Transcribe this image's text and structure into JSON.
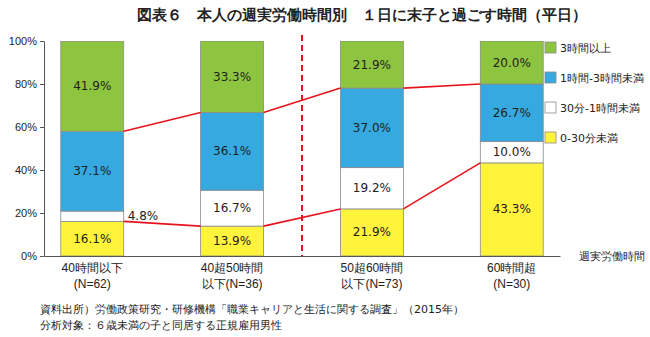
{
  "chart_data": {
    "type": "bar",
    "stacked": true,
    "title": "図表６　本人の週実労働時間別　１日に末子と過ごす時間（平日）",
    "x_label": "週実労働時間",
    "categories": [
      "40時間以下\n(N=62)",
      "40超50時間\n以下(N=36)",
      "50超60時間\n以下(N=73)",
      "60時間超\n(N=30)"
    ],
    "series": [
      {
        "name": "0-30分未満",
        "color": "#fff33b",
        "values": [
          16.1,
          13.9,
          21.9,
          43.3
        ],
        "value_labels": [
          "16.1%",
          "13.9%",
          "21.9%",
          "43.3%"
        ]
      },
      {
        "name": "30分-1時間未満",
        "color": "#ffffff",
        "values": [
          4.8,
          16.7,
          19.2,
          10.0
        ],
        "value_labels": [
          "4.8%",
          "16.7%",
          "19.2%",
          "10.0%"
        ]
      },
      {
        "name": "1時間-3時間未満",
        "color": "#35a9e0",
        "values": [
          37.1,
          36.1,
          37.0,
          26.7
        ],
        "value_labels": [
          "37.1%",
          "36.1%",
          "37.0%",
          "26.7%"
        ]
      },
      {
        "name": "3時間以上",
        "color": "#8dc540",
        "values": [
          41.9,
          33.3,
          21.9,
          20.0
        ],
        "value_labels": [
          "41.9%",
          "33.3%",
          "21.9%",
          "20.0%"
        ]
      }
    ],
    "ylim": [
      0,
      100
    ],
    "yticks": [
      {
        "value": 0,
        "label": "0%"
      },
      {
        "value": 20,
        "label": "20%"
      },
      {
        "value": 40,
        "label": "40%"
      },
      {
        "value": 60,
        "label": "60%"
      },
      {
        "value": 80,
        "label": "80%"
      },
      {
        "value": 100,
        "label": "100%"
      }
    ],
    "data_labels": true,
    "legend": "right",
    "annotations": [
      "資料出所）労働政策研究・研修機構「職業キャリアと生活に関する調査」（2015年）",
      "分析対象：６歳未満の子と同居する正規雇用男性"
    ]
  }
}
